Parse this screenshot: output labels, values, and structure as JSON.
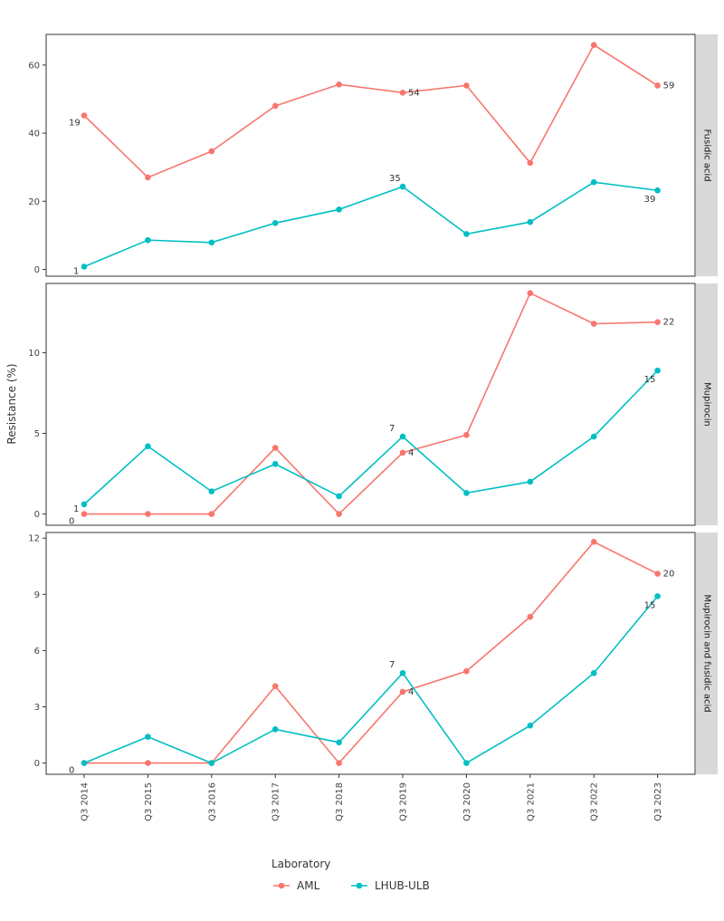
{
  "chart_data": {
    "type": "line",
    "ylabel": "Resistance (%)",
    "xlabel": "",
    "categories": [
      "Q3 2014",
      "Q3 2015",
      "Q3 2016",
      "Q3 2017",
      "Q3 2018",
      "Q3 2019",
      "Q3 2020",
      "Q3 2021",
      "Q3 2022",
      "Q3 2023"
    ],
    "legend": {
      "title": "Laboratory",
      "position": "bottom"
    },
    "series_styles": [
      {
        "name": "AML",
        "color": "#F8766D"
      },
      {
        "name": "LHUB-ULB",
        "color": "#00BFC4"
      }
    ],
    "panels": [
      {
        "strip": "Fusidic acid",
        "ylim": [
          -2,
          69
        ],
        "yticks": [
          0,
          20,
          40,
          60
        ],
        "series": [
          {
            "name": "AML",
            "values": [
              45.2,
              27.0,
              34.7,
              48.0,
              54.3,
              51.9,
              54.0,
              31.3,
              65.9,
              54.0
            ]
          },
          {
            "name": "LHUB-ULB",
            "values": [
              0.8,
              8.6,
              7.9,
              13.6,
              17.6,
              24.3,
              10.4,
              13.9,
              25.6,
              23.2
            ]
          }
        ],
        "annotations": [
          {
            "series": "AML",
            "index": 0,
            "text": "19"
          },
          {
            "series": "AML",
            "index": 5,
            "text": "54"
          },
          {
            "series": "AML",
            "index": 9,
            "text": "59"
          },
          {
            "series": "LHUB-ULB",
            "index": 0,
            "text": "1"
          },
          {
            "series": "LHUB-ULB",
            "index": 5,
            "text": "35"
          },
          {
            "series": "LHUB-ULB",
            "index": 9,
            "text": "39"
          }
        ]
      },
      {
        "strip": "Mupirocin",
        "ylim": [
          -0.7,
          14.3
        ],
        "yticks": [
          0,
          5,
          10
        ],
        "series": [
          {
            "name": "AML",
            "values": [
              0,
              0,
              0,
              4.1,
              0,
              3.8,
              4.9,
              13.7,
              11.8,
              11.9
            ]
          },
          {
            "name": "LHUB-ULB",
            "values": [
              0.6,
              4.2,
              1.4,
              3.1,
              1.1,
              4.8,
              1.3,
              2.0,
              4.8,
              8.9
            ]
          }
        ],
        "annotations": [
          {
            "series": "AML",
            "index": 0,
            "text": "0"
          },
          {
            "series": "AML",
            "index": 5,
            "text": "4"
          },
          {
            "series": "AML",
            "index": 9,
            "text": "22"
          },
          {
            "series": "LHUB-ULB",
            "index": 0,
            "text": "1"
          },
          {
            "series": "LHUB-ULB",
            "index": 5,
            "text": "7"
          },
          {
            "series": "LHUB-ULB",
            "index": 9,
            "text": "15"
          }
        ]
      },
      {
        "strip": "Mupirocin and fusidic acid",
        "ylim": [
          -0.6,
          12.3
        ],
        "yticks": [
          0,
          3,
          6,
          9,
          12
        ],
        "series": [
          {
            "name": "AML",
            "values": [
              0,
              0,
              0,
              4.1,
              0,
              3.8,
              4.9,
              7.8,
              11.8,
              10.1
            ]
          },
          {
            "name": "LHUB-ULB",
            "values": [
              0,
              1.4,
              0,
              1.8,
              1.1,
              4.8,
              0,
              2.0,
              4.8,
              8.9
            ]
          }
        ],
        "annotations": [
          {
            "series": "AML",
            "index": 0,
            "text": "0"
          },
          {
            "series": "AML",
            "index": 5,
            "text": "4"
          },
          {
            "series": "AML",
            "index": 9,
            "text": "20"
          },
          {
            "series": "LHUB-ULB",
            "index": 5,
            "text": "7"
          },
          {
            "series": "LHUB-ULB",
            "index": 9,
            "text": "15"
          }
        ]
      }
    ]
  }
}
